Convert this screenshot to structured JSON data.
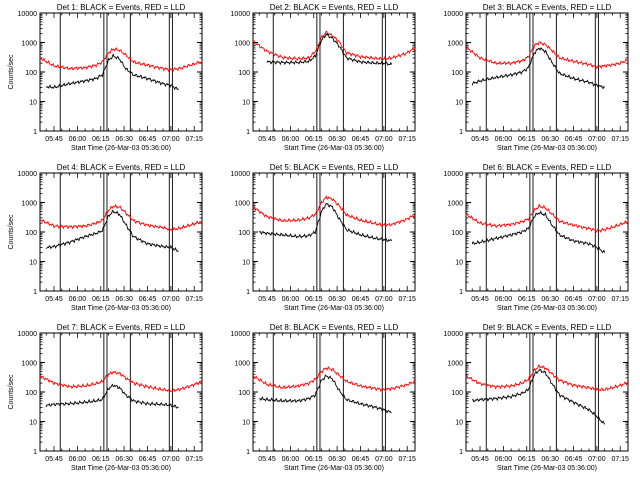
{
  "figure": {
    "background": "#ffffff",
    "axis_color": "#000000",
    "events_color": "#000000",
    "lld_color": "#ff0000"
  },
  "chart_data": [
    {
      "type": "line",
      "title": "Det 1: BLACK = Events, RED = LLD",
      "ylabel": "Counts/sec",
      "xlabel": "Start Time (26-Mar-03 05:36:00)",
      "yscale": "log",
      "ylim": [
        1,
        10000
      ],
      "yticks": [
        "1",
        "10",
        "100",
        "1000",
        "10000"
      ],
      "xlim": [
        "05:36",
        "07:20"
      ],
      "xticks": [
        "05:45",
        "06:00",
        "06:15",
        "06:30",
        "06:45",
        "07:00",
        "07:15"
      ],
      "vertical_lines": [
        "05:49",
        "06:17",
        "06:19",
        "06:34",
        "06:59",
        "07:01"
      ],
      "series": [
        {
          "color": "#ff0000",
          "x": [
            "05:36",
            "05:45",
            "05:55",
            "06:05",
            "06:12",
            "06:16",
            "06:20",
            "06:23",
            "06:27",
            "06:31",
            "06:36",
            "06:45",
            "06:55",
            "07:00",
            "07:05",
            "07:14",
            "07:20"
          ],
          "values": [
            300,
            160,
            130,
            140,
            170,
            220,
            450,
            600,
            550,
            380,
            220,
            170,
            130,
            120,
            130,
            180,
            230
          ]
        },
        {
          "color": "#000000",
          "x": [
            "05:40",
            "05:45",
            "05:55",
            "06:05",
            "06:12",
            "06:16",
            "06:20",
            "06:23",
            "06:27",
            "06:31",
            "06:36",
            "06:45",
            "06:55",
            "07:00",
            "07:05"
          ],
          "values": [
            32,
            30,
            40,
            50,
            60,
            80,
            250,
            350,
            280,
            130,
            80,
            60,
            40,
            35,
            25
          ]
        }
      ]
    },
    {
      "type": "line",
      "title": "Det 2: BLACK = Events, RED = LLD",
      "ylabel": "",
      "xlabel": "Start Time (26-Mar-03 05:36:00)",
      "yscale": "log",
      "ylim": [
        1,
        10000
      ],
      "yticks": [
        "1",
        "10",
        "100",
        "1000",
        "10000"
      ],
      "xlim": [
        "05:36",
        "07:20"
      ],
      "xticks": [
        "05:45",
        "06:00",
        "06:15",
        "06:30",
        "06:45",
        "07:00",
        "07:15"
      ],
      "vertical_lines": [
        "05:49",
        "06:17",
        "06:19",
        "06:34",
        "06:59",
        "07:01"
      ],
      "series": [
        {
          "color": "#ff0000",
          "x": [
            "05:36",
            "05:45",
            "05:55",
            "06:05",
            "06:12",
            "06:16",
            "06:20",
            "06:23",
            "06:27",
            "06:31",
            "06:36",
            "06:45",
            "06:55",
            "07:00",
            "07:05",
            "07:14",
            "07:20"
          ],
          "values": [
            1100,
            500,
            310,
            280,
            300,
            500,
            1500,
            2200,
            1700,
            1100,
            450,
            330,
            290,
            280,
            300,
            420,
            650
          ]
        },
        {
          "color": "#000000",
          "x": [
            "05:45",
            "05:55",
            "06:05",
            "06:12",
            "06:16",
            "06:20",
            "06:23",
            "06:27",
            "06:31",
            "06:36",
            "06:45",
            "06:55",
            "07:00",
            "07:05"
          ],
          "values": [
            220,
            210,
            210,
            230,
            350,
            1200,
            1900,
            1400,
            800,
            300,
            220,
            200,
            200,
            180
          ]
        }
      ]
    },
    {
      "type": "line",
      "title": "Det 3: BLACK = Events, RED = LLD",
      "ylabel": "",
      "xlabel": "Start Time (26-Mar-03 05:36:00)",
      "yscale": "log",
      "ylim": [
        1,
        10000
      ],
      "yticks": [
        "1",
        "10",
        "100",
        "1000",
        "10000"
      ],
      "xlim": [
        "05:36",
        "07:20"
      ],
      "xticks": [
        "05:45",
        "06:00",
        "06:15",
        "06:30",
        "06:45",
        "07:00",
        "07:15"
      ],
      "vertical_lines": [
        "05:49",
        "06:17",
        "06:19",
        "06:34",
        "06:59",
        "07:01"
      ],
      "series": [
        {
          "color": "#ff0000",
          "x": [
            "05:36",
            "05:45",
            "05:55",
            "06:05",
            "06:12",
            "06:16",
            "06:20",
            "06:23",
            "06:27",
            "06:31",
            "06:36",
            "06:45",
            "06:55",
            "07:00",
            "07:05",
            "07:14",
            "07:20"
          ],
          "values": [
            700,
            300,
            200,
            200,
            240,
            330,
            800,
            1000,
            850,
            550,
            300,
            230,
            180,
            150,
            160,
            190,
            260
          ]
        },
        {
          "color": "#000000",
          "x": [
            "05:40",
            "05:45",
            "05:55",
            "06:05",
            "06:12",
            "06:16",
            "06:20",
            "06:23",
            "06:27",
            "06:31",
            "06:36",
            "06:45",
            "06:55",
            "07:00",
            "07:05"
          ],
          "values": [
            40,
            50,
            65,
            80,
            100,
            140,
            450,
            650,
            500,
            220,
            90,
            60,
            45,
            35,
            30
          ]
        }
      ]
    },
    {
      "type": "line",
      "title": "Det 4: BLACK = Events, RED = LLD",
      "ylabel": "Counts/sec",
      "xlabel": "Start Time (26-Mar-03 05:36:00)",
      "yscale": "log",
      "ylim": [
        1,
        10000
      ],
      "yticks": [
        "1",
        "10",
        "100",
        "1000",
        "10000"
      ],
      "xlim": [
        "05:36",
        "07:20"
      ],
      "xticks": [
        "05:45",
        "06:00",
        "06:15",
        "06:30",
        "06:45",
        "07:00",
        "07:15"
      ],
      "vertical_lines": [
        "05:49",
        "06:17",
        "06:19",
        "06:34",
        "06:59",
        "07:01"
      ],
      "series": [
        {
          "color": "#ff0000",
          "x": [
            "05:36",
            "05:45",
            "05:55",
            "06:05",
            "06:12",
            "06:16",
            "06:20",
            "06:23",
            "06:27",
            "06:31",
            "06:36",
            "06:45",
            "06:55",
            "07:00",
            "07:05",
            "07:14",
            "07:20"
          ],
          "values": [
            260,
            160,
            150,
            160,
            200,
            250,
            550,
            750,
            700,
            450,
            240,
            170,
            140,
            120,
            130,
            180,
            230
          ]
        },
        {
          "color": "#000000",
          "x": [
            "05:40",
            "05:45",
            "05:55",
            "06:05",
            "06:12",
            "06:16",
            "06:20",
            "06:23",
            "06:27",
            "06:31",
            "06:36",
            "06:45",
            "06:55",
            "07:00",
            "07:05"
          ],
          "values": [
            30,
            32,
            45,
            70,
            90,
            110,
            350,
            500,
            400,
            180,
            70,
            40,
            32,
            30,
            22
          ]
        }
      ]
    },
    {
      "type": "line",
      "title": "Det 5: BLACK = Events, RED = LLD",
      "ylabel": "",
      "xlabel": "Start Time (26-Mar-03 05:36:00)",
      "yscale": "log",
      "ylim": [
        1,
        10000
      ],
      "yticks": [
        "1",
        "10",
        "100",
        "1000",
        "10000"
      ],
      "xlim": [
        "05:36",
        "07:20"
      ],
      "xticks": [
        "05:45",
        "06:00",
        "06:15",
        "06:30",
        "06:45",
        "07:00",
        "07:15"
      ],
      "vertical_lines": [
        "05:49",
        "06:17",
        "06:19",
        "06:34",
        "06:59",
        "07:01"
      ],
      "series": [
        {
          "color": "#ff0000",
          "x": [
            "05:36",
            "05:45",
            "05:55",
            "06:05",
            "06:12",
            "06:16",
            "06:20",
            "06:23",
            "06:27",
            "06:31",
            "06:36",
            "06:45",
            "06:55",
            "07:00",
            "07:05",
            "07:14",
            "07:20"
          ],
          "values": [
            700,
            330,
            240,
            250,
            300,
            400,
            1000,
            1500,
            1300,
            800,
            380,
            250,
            190,
            170,
            180,
            260,
            380
          ]
        },
        {
          "color": "#000000",
          "x": [
            "05:40",
            "05:45",
            "05:55",
            "06:05",
            "06:12",
            "06:16",
            "06:20",
            "06:23",
            "06:27",
            "06:31",
            "06:36",
            "06:45",
            "06:55",
            "07:00",
            "07:05"
          ],
          "values": [
            100,
            90,
            80,
            70,
            75,
            100,
            500,
            900,
            700,
            300,
            120,
            80,
            60,
            55,
            50
          ]
        }
      ]
    },
    {
      "type": "line",
      "title": "Det 6: BLACK = Events, RED = LLD",
      "ylabel": "",
      "xlabel": "Start Time (26-Mar-03 05:36:00)",
      "yscale": "log",
      "ylim": [
        1,
        10000
      ],
      "yticks": [
        "1",
        "10",
        "100",
        "1000",
        "10000"
      ],
      "xlim": [
        "05:36",
        "07:20"
      ],
      "xticks": [
        "05:45",
        "06:00",
        "06:15",
        "06:30",
        "06:45",
        "07:00",
        "07:15"
      ],
      "vertical_lines": [
        "05:49",
        "06:17",
        "06:19",
        "06:34",
        "06:59",
        "07:01"
      ],
      "series": [
        {
          "color": "#ff0000",
          "x": [
            "05:36",
            "05:45",
            "05:55",
            "06:05",
            "06:12",
            "06:16",
            "06:20",
            "06:23",
            "06:27",
            "06:31",
            "06:36",
            "06:45",
            "06:55",
            "07:00",
            "07:05",
            "07:14",
            "07:20"
          ],
          "values": [
            400,
            200,
            160,
            180,
            220,
            280,
            550,
            750,
            650,
            420,
            230,
            170,
            130,
            110,
            120,
            170,
            230
          ]
        },
        {
          "color": "#000000",
          "x": [
            "05:40",
            "05:45",
            "05:55",
            "06:05",
            "06:12",
            "06:16",
            "06:20",
            "06:23",
            "06:27",
            "06:31",
            "06:36",
            "06:45",
            "06:55",
            "07:00",
            "07:05"
          ],
          "values": [
            40,
            45,
            60,
            80,
            100,
            130,
            350,
            450,
            380,
            180,
            80,
            50,
            40,
            30,
            20
          ]
        }
      ]
    },
    {
      "type": "line",
      "title": "Det 7: BLACK = Events, RED = LLD",
      "ylabel": "Counts/sec",
      "xlabel": "Start Time (26-Mar-03 05:36:00)",
      "yscale": "log",
      "ylim": [
        1,
        10000
      ],
      "yticks": [
        "1",
        "10",
        "100",
        "1000",
        "10000"
      ],
      "xlim": [
        "05:36",
        "07:20"
      ],
      "xticks": [
        "05:45",
        "06:00",
        "06:15",
        "06:30",
        "06:45",
        "07:00",
        "07:15"
      ],
      "vertical_lines": [
        "05:49",
        "06:17",
        "06:19",
        "06:34",
        "06:59",
        "07:01"
      ],
      "series": [
        {
          "color": "#ff0000",
          "x": [
            "05:36",
            "05:45",
            "05:55",
            "06:05",
            "06:12",
            "06:16",
            "06:20",
            "06:23",
            "06:27",
            "06:31",
            "06:36",
            "06:45",
            "06:55",
            "07:00",
            "07:05",
            "07:14",
            "07:20"
          ],
          "values": [
            350,
            200,
            150,
            160,
            190,
            230,
            400,
            470,
            430,
            300,
            200,
            150,
            120,
            110,
            120,
            170,
            230
          ]
        },
        {
          "color": "#000000",
          "x": [
            "05:40",
            "05:45",
            "05:55",
            "06:05",
            "06:12",
            "06:16",
            "06:20",
            "06:23",
            "06:27",
            "06:31",
            "06:36",
            "06:45",
            "06:55",
            "07:00",
            "07:05"
          ],
          "values": [
            35,
            38,
            40,
            45,
            50,
            55,
            130,
            170,
            140,
            80,
            50,
            40,
            38,
            35,
            30
          ]
        }
      ]
    },
    {
      "type": "line",
      "title": "Det 8: BLACK = Events, RED = LLD",
      "ylabel": "",
      "xlabel": "Start Time (26-Mar-03 05:36:00)",
      "yscale": "log",
      "ylim": [
        1,
        10000
      ],
      "yticks": [
        "1",
        "10",
        "100",
        "1000",
        "10000"
      ],
      "xlim": [
        "05:36",
        "07:20"
      ],
      "xticks": [
        "05:45",
        "06:00",
        "06:15",
        "06:30",
        "06:45",
        "07:00",
        "07:15"
      ],
      "vertical_lines": [
        "05:49",
        "06:17",
        "06:19",
        "06:34",
        "06:59",
        "07:01"
      ],
      "series": [
        {
          "color": "#ff0000",
          "x": [
            "05:36",
            "05:45",
            "05:55",
            "06:05",
            "06:12",
            "06:16",
            "06:20",
            "06:23",
            "06:27",
            "06:31",
            "06:36",
            "06:45",
            "06:55",
            "07:00",
            "07:05",
            "07:14",
            "07:20"
          ],
          "values": [
            350,
            180,
            140,
            160,
            200,
            270,
            500,
            650,
            580,
            380,
            230,
            160,
            130,
            120,
            130,
            170,
            230
          ]
        },
        {
          "color": "#000000",
          "x": [
            "05:40",
            "05:45",
            "05:55",
            "06:05",
            "06:12",
            "06:16",
            "06:20",
            "06:23",
            "06:27",
            "06:31",
            "06:36",
            "06:45",
            "06:55",
            "07:00",
            "07:05"
          ],
          "values": [
            60,
            55,
            50,
            50,
            60,
            80,
            250,
            350,
            280,
            120,
            55,
            40,
            30,
            25,
            20
          ]
        }
      ]
    },
    {
      "type": "line",
      "title": "Det 9: BLACK = Events, RED = LLD",
      "ylabel": "",
      "xlabel": "Start Time (26-Mar-03 05:36:00)",
      "yscale": "log",
      "ylim": [
        1,
        10000
      ],
      "yticks": [
        "1",
        "10",
        "100",
        "1000",
        "10000"
      ],
      "xlim": [
        "05:36",
        "07:20"
      ],
      "xticks": [
        "05:45",
        "06:00",
        "06:15",
        "06:30",
        "06:45",
        "07:00",
        "07:15"
      ],
      "vertical_lines": [
        "05:49",
        "06:17",
        "06:19",
        "06:34",
        "06:59",
        "07:01"
      ],
      "series": [
        {
          "color": "#ff0000",
          "x": [
            "05:36",
            "05:45",
            "05:55",
            "06:05",
            "06:12",
            "06:16",
            "06:20",
            "06:23",
            "06:27",
            "06:31",
            "06:36",
            "06:45",
            "06:55",
            "07:00",
            "07:05",
            "07:14",
            "07:20"
          ],
          "values": [
            350,
            190,
            150,
            160,
            200,
            270,
            550,
            750,
            650,
            420,
            250,
            170,
            140,
            120,
            120,
            160,
            210
          ]
        },
        {
          "color": "#000000",
          "x": [
            "05:40",
            "05:45",
            "05:55",
            "06:05",
            "06:12",
            "06:16",
            "06:20",
            "06:23",
            "06:27",
            "06:31",
            "06:36",
            "06:45",
            "06:55",
            "07:00",
            "07:05"
          ],
          "values": [
            50,
            55,
            60,
            70,
            90,
            120,
            400,
            550,
            450,
            200,
            80,
            45,
            25,
            15,
            8
          ]
        }
      ]
    }
  ]
}
